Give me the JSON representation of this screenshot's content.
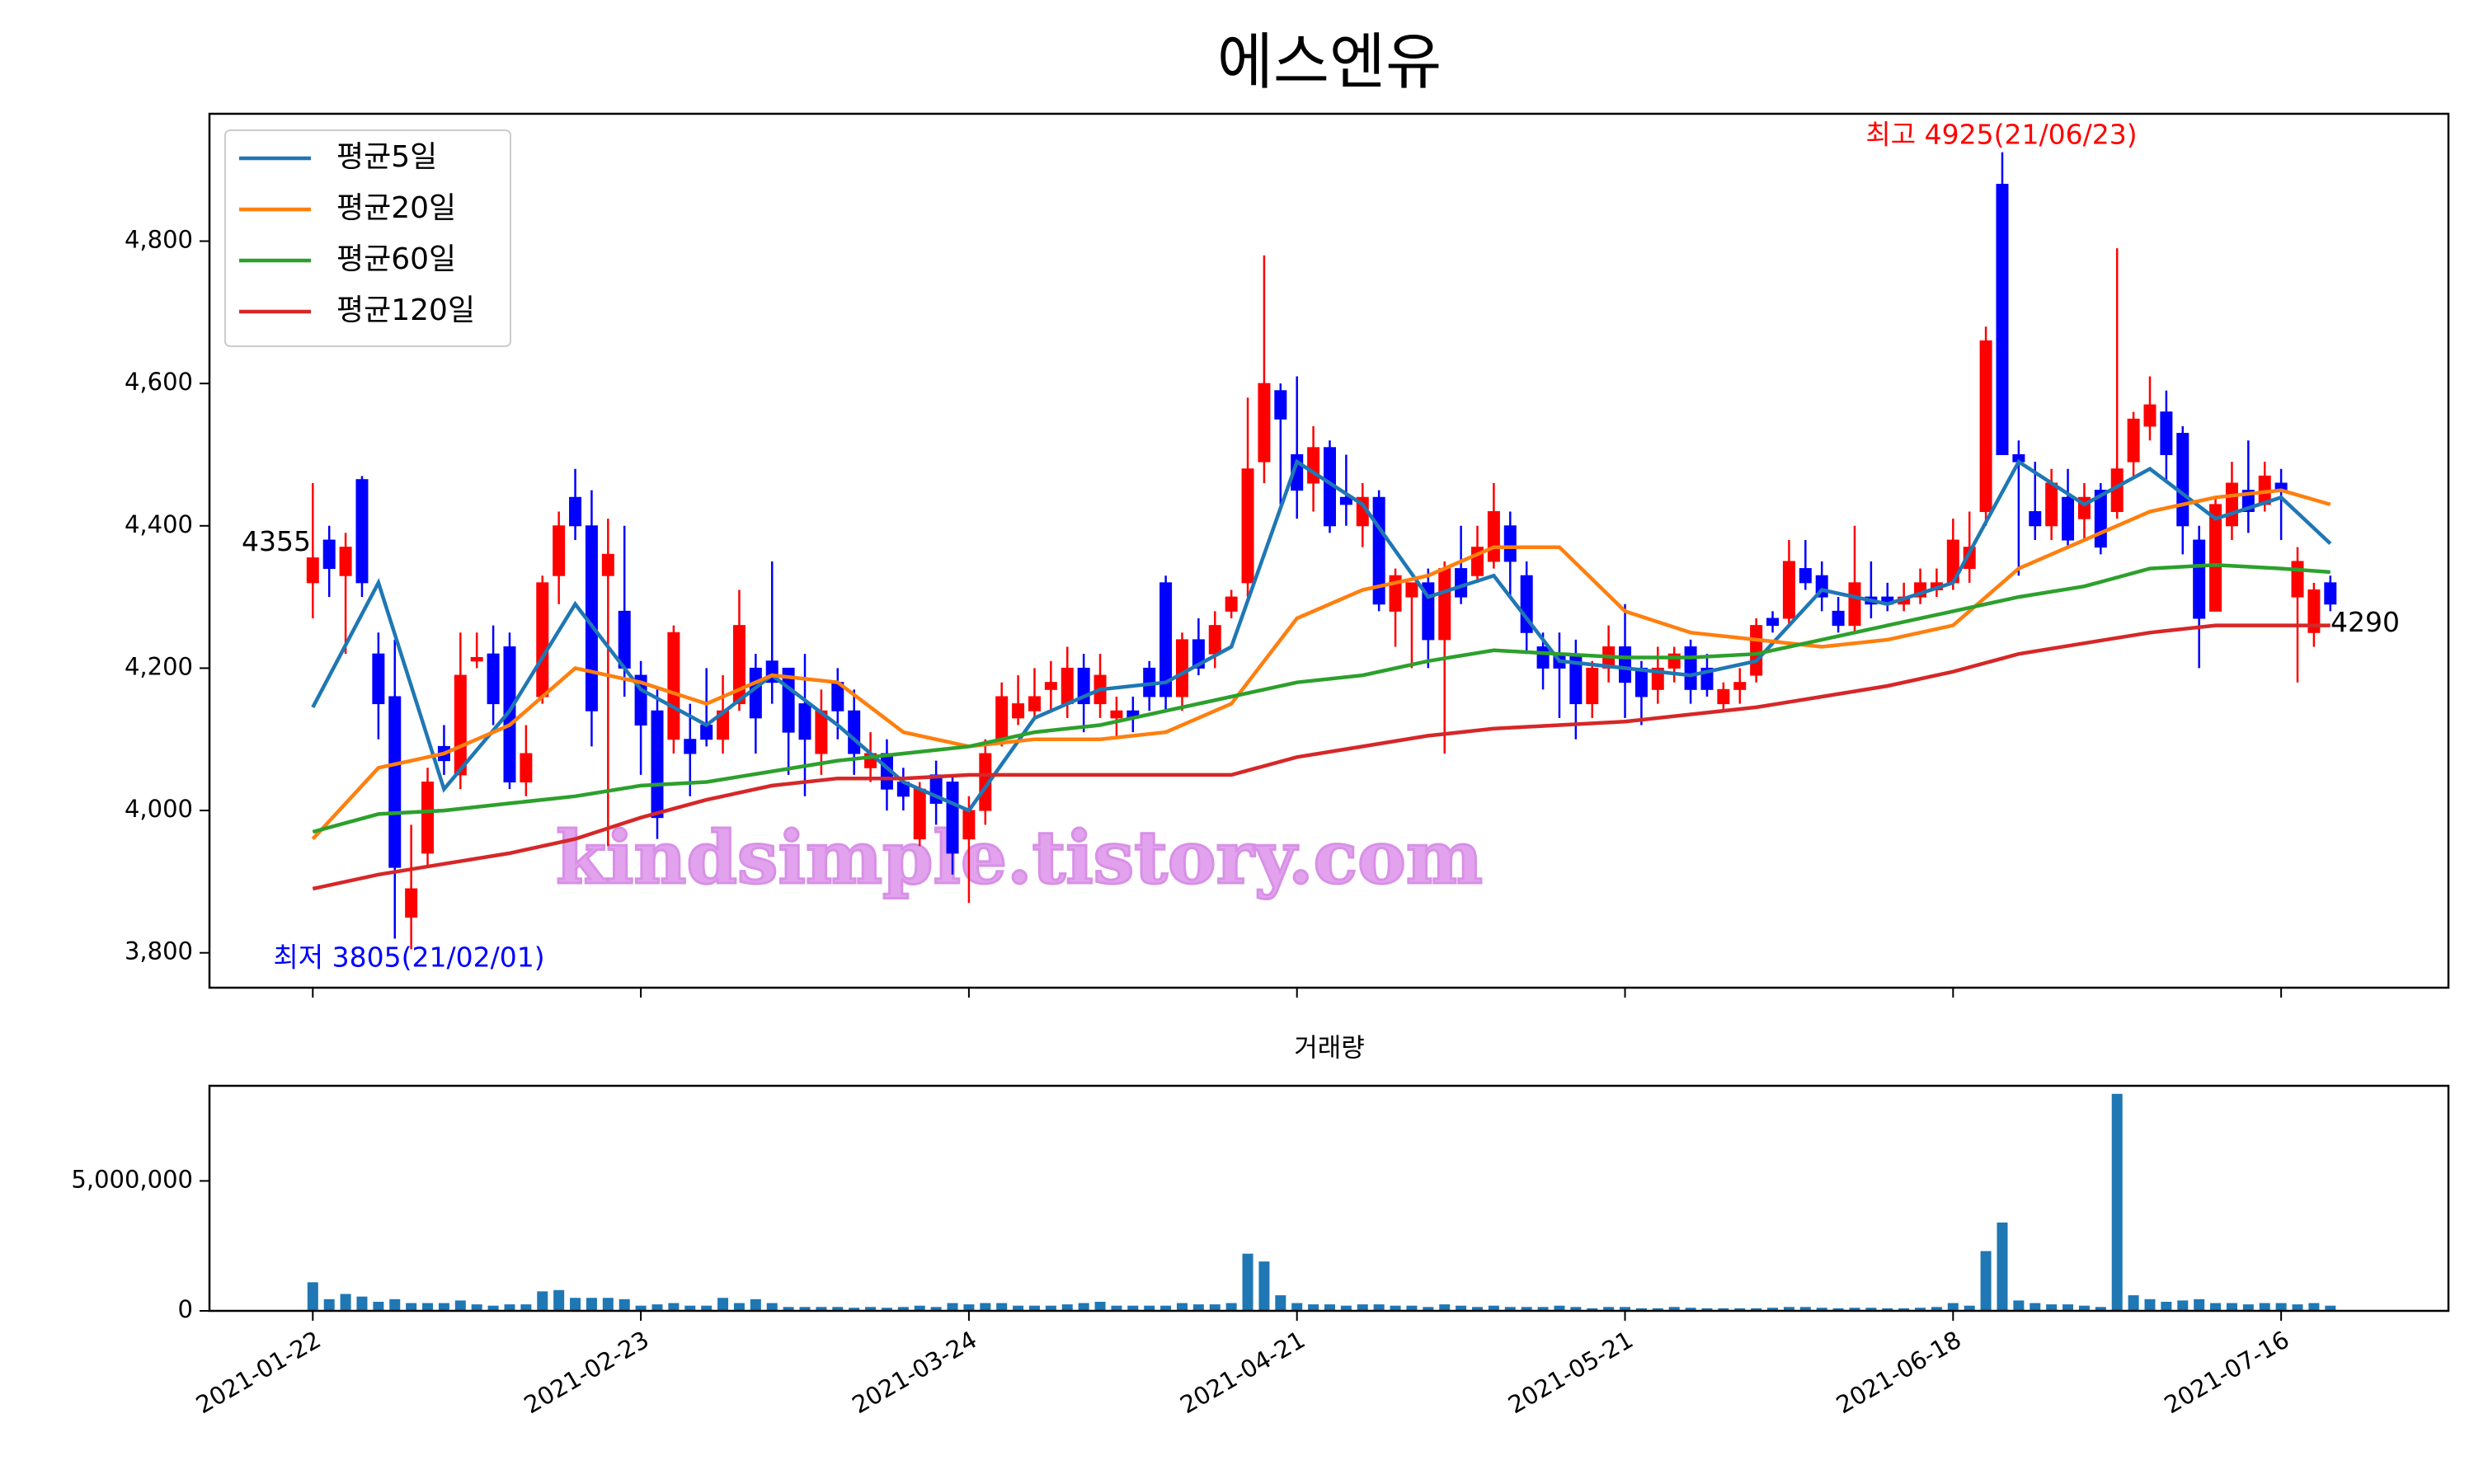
{
  "chart_data": [
    {
      "type": "candlestick",
      "title": "에스엔유",
      "up_color": "#ff0000",
      "down_color": "#0000ff",
      "open": [
        4320,
        4380,
        4330,
        4465,
        4220,
        4160,
        3850,
        3940,
        4090,
        4050,
        4210,
        4220,
        4230,
        4040,
        4160,
        4330,
        4440,
        4400,
        4330,
        4280,
        4190,
        4140,
        4100,
        4100,
        4120,
        4100,
        4150,
        4200,
        4210,
        4200,
        4150,
        4080,
        4180,
        4140,
        4060,
        4080,
        4040,
        3960,
        4050,
        4040,
        3960,
        4000,
        4100,
        4130,
        4140,
        4170,
        4150,
        4200,
        4150,
        4130,
        4140,
        4200,
        4320,
        4160,
        4240,
        4220,
        4280,
        4320,
        4490,
        4590,
        4500,
        4460,
        4510,
        4440,
        4400,
        4440,
        4280,
        4300,
        4320,
        4240,
        4340,
        4330,
        4350,
        4400,
        4330,
        4230,
        4220,
        4220,
        4150,
        4200,
        4230,
        4200,
        4170,
        4200,
        4230,
        4200,
        4150,
        4170,
        4190,
        4270,
        4270,
        4340,
        4330,
        4280,
        4260,
        4300,
        4300,
        4290,
        4300,
        4310,
        4320,
        4340,
        4420,
        4880,
        4500,
        4420,
        4400,
        4440,
        4410,
        4450,
        4420,
        4490,
        4540,
        4560,
        4530,
        4380,
        4280,
        4400,
        4450,
        4430,
        4460,
        4300,
        4250,
        4320
      ],
      "high": [
        4460,
        4400,
        4390,
        4470,
        4250,
        4240,
        3980,
        4060,
        4120,
        4250,
        4250,
        4260,
        4250,
        4120,
        4330,
        4420,
        4480,
        4450,
        4410,
        4400,
        4210,
        4170,
        4260,
        4150,
        4200,
        4190,
        4310,
        4220,
        4350,
        4200,
        4220,
        4170,
        4200,
        4170,
        4110,
        4100,
        4060,
        4040,
        4070,
        4050,
        4020,
        4100,
        4180,
        4190,
        4200,
        4210,
        4230,
        4220,
        4220,
        4160,
        4160,
        4210,
        4330,
        4250,
        4270,
        4280,
        4310,
        4580,
        4780,
        4600,
        4610,
        4540,
        4520,
        4500,
        4460,
        4450,
        4340,
        4320,
        4340,
        4350,
        4400,
        4400,
        4460,
        4420,
        4350,
        4250,
        4250,
        4240,
        4210,
        4260,
        4290,
        4210,
        4230,
        4230,
        4240,
        4220,
        4180,
        4200,
        4270,
        4280,
        4380,
        4380,
        4350,
        4300,
        4400,
        4350,
        4320,
        4320,
        4340,
        4340,
        4410,
        4420,
        4680,
        4925,
        4520,
        4490,
        4480,
        4480,
        4460,
        4460,
        4790,
        4560,
        4610,
        4590,
        4540,
        4400,
        4440,
        4490,
        4520,
        4490,
        4480,
        4370,
        4320,
        4330
      ],
      "low": [
        4270,
        4300,
        4220,
        4300,
        4100,
        3820,
        3805,
        3920,
        4050,
        4030,
        4200,
        4120,
        4030,
        4020,
        4150,
        4290,
        4380,
        4090,
        3950,
        4160,
        4050,
        3960,
        4080,
        4020,
        4090,
        4080,
        4140,
        4080,
        4150,
        4050,
        4020,
        4050,
        4100,
        4050,
        4040,
        4000,
        4000,
        3950,
        3980,
        3910,
        3870,
        3980,
        4090,
        4120,
        4130,
        4140,
        4130,
        4110,
        4130,
        4100,
        4110,
        4140,
        4140,
        4140,
        4190,
        4200,
        4270,
        4300,
        4460,
        4430,
        4410,
        4420,
        4390,
        4400,
        4370,
        4280,
        4230,
        4200,
        4200,
        4080,
        4290,
        4320,
        4340,
        4300,
        4220,
        4170,
        4130,
        4100,
        4130,
        4180,
        4130,
        4120,
        4150,
        4180,
        4150,
        4160,
        4140,
        4150,
        4180,
        4250,
        4260,
        4310,
        4280,
        4250,
        4250,
        4270,
        4280,
        4280,
        4290,
        4300,
        4310,
        4320,
        4400,
        4500,
        4330,
        4380,
        4380,
        4370,
        4380,
        4360,
        4410,
        4470,
        4520,
        4460,
        4360,
        4200,
        4280,
        4380,
        4390,
        4420,
        4380,
        4180,
        4230,
        4280
      ],
      "close": [
        4355,
        4340,
        4370,
        4320,
        4150,
        3920,
        3890,
        4040,
        4070,
        4190,
        4215,
        4150,
        4040,
        4080,
        4320,
        4400,
        4400,
        4140,
        4360,
        4200,
        4120,
        3990,
        4250,
        4080,
        4100,
        4140,
        4260,
        4130,
        4180,
        4110,
        4100,
        4140,
        4140,
        4080,
        4080,
        4030,
        4020,
        4030,
        4010,
        3940,
        4000,
        4080,
        4160,
        4150,
        4160,
        4180,
        4200,
        4150,
        4190,
        4140,
        4130,
        4160,
        4160,
        4240,
        4200,
        4260,
        4300,
        4480,
        4600,
        4550,
        4450,
        4510,
        4400,
        4430,
        4440,
        4290,
        4330,
        4320,
        4240,
        4340,
        4300,
        4370,
        4420,
        4350,
        4250,
        4200,
        4200,
        4150,
        4200,
        4230,
        4180,
        4160,
        4200,
        4220,
        4170,
        4170,
        4170,
        4180,
        4260,
        4260,
        4350,
        4320,
        4300,
        4260,
        4320,
        4290,
        4290,
        4300,
        4320,
        4320,
        4380,
        4370,
        4660,
        4500,
        4490,
        4400,
        4460,
        4380,
        4440,
        4370,
        4480,
        4550,
        4570,
        4500,
        4400,
        4270,
        4430,
        4460,
        4420,
        4470,
        4450,
        4350,
        4310,
        4290
      ],
      "series": [
        {
          "name": "평균5일",
          "color": "#1f77b4",
          "x": [
            0,
            4,
            8,
            12,
            16,
            20,
            24,
            28,
            32,
            36,
            40,
            44,
            48,
            52,
            56,
            60,
            64,
            68,
            72,
            76,
            80,
            84,
            88,
            92,
            96,
            100,
            104,
            108,
            112,
            116,
            120,
            123
          ],
          "values": [
            4145,
            4320,
            4030,
            4140,
            4290,
            4170,
            4120,
            4190,
            4120,
            4040,
            4000,
            4130,
            4170,
            4180,
            4230,
            4490,
            4430,
            4300,
            4330,
            4210,
            4200,
            4190,
            4210,
            4310,
            4290,
            4320,
            4490,
            4430,
            4480,
            4410,
            4440,
            4375
          ]
        },
        {
          "name": "평균20일",
          "color": "#ff7f0e",
          "x": [
            0,
            4,
            8,
            12,
            16,
            20,
            24,
            28,
            32,
            36,
            40,
            44,
            48,
            52,
            56,
            60,
            64,
            68,
            72,
            76,
            80,
            84,
            88,
            92,
            96,
            100,
            104,
            108,
            112,
            116,
            120,
            123
          ],
          "values": [
            3960,
            4060,
            4080,
            4120,
            4200,
            4180,
            4150,
            4190,
            4180,
            4110,
            4090,
            4100,
            4100,
            4110,
            4150,
            4270,
            4310,
            4330,
            4370,
            4370,
            4280,
            4250,
            4240,
            4230,
            4240,
            4260,
            4340,
            4380,
            4420,
            4440,
            4450,
            4430
          ]
        },
        {
          "name": "평균60일",
          "color": "#2ca02c",
          "x": [
            0,
            4,
            8,
            12,
            16,
            20,
            24,
            28,
            32,
            36,
            40,
            44,
            48,
            52,
            56,
            60,
            64,
            68,
            72,
            76,
            80,
            84,
            88,
            92,
            96,
            100,
            104,
            108,
            112,
            116,
            120,
            123
          ],
          "values": [
            3970,
            3995,
            4000,
            4010,
            4020,
            4035,
            4040,
            4055,
            4070,
            4080,
            4090,
            4110,
            4120,
            4140,
            4160,
            4180,
            4190,
            4210,
            4225,
            4220,
            4215,
            4215,
            4220,
            4240,
            4260,
            4280,
            4300,
            4315,
            4340,
            4345,
            4340,
            4335
          ]
        },
        {
          "name": "평균120일",
          "color": "#d62728",
          "x": [
            0,
            4,
            8,
            12,
            16,
            20,
            24,
            28,
            32,
            36,
            40,
            44,
            48,
            52,
            56,
            60,
            64,
            68,
            72,
            76,
            80,
            84,
            88,
            92,
            96,
            100,
            104,
            108,
            112,
            116,
            120,
            123
          ],
          "values": [
            3890,
            3910,
            3925,
            3940,
            3960,
            3990,
            4015,
            4035,
            4045,
            4045,
            4050,
            4050,
            4050,
            4050,
            4050,
            4075,
            4090,
            4105,
            4115,
            4120,
            4125,
            4135,
            4145,
            4160,
            4175,
            4195,
            4220,
            4235,
            4250,
            4260,
            4260,
            4260
          ]
        }
      ],
      "legend": "upper left",
      "annotations": {
        "high": "최고 4925(21/06/23)",
        "high_color": "#ff0000",
        "low": "최저 3805(21/02/01)",
        "low_color": "#0000ff",
        "first": 4355,
        "last": 4290
      },
      "watermark": "kindsimple.tistory.com",
      "xlim": [
        -6.3,
        130.2
      ],
      "ylim": [
        3751,
        4979
      ],
      "yticks": [
        {
          "value": 3800,
          "label": "3,800"
        },
        {
          "value": 4000,
          "label": "4,000"
        },
        {
          "value": 4200,
          "label": "4,200"
        },
        {
          "value": 4400,
          "label": "4,400"
        },
        {
          "value": 4600,
          "label": "4,600"
        },
        {
          "value": 4800,
          "label": "4,800"
        }
      ]
    },
    {
      "type": "bar",
      "title": "거래량",
      "color": "#1f77b4",
      "values": [
        1100000,
        450000,
        650000,
        550000,
        350000,
        450000,
        300000,
        300000,
        300000,
        400000,
        250000,
        200000,
        250000,
        250000,
        750000,
        800000,
        500000,
        500000,
        500000,
        450000,
        200000,
        250000,
        300000,
        200000,
        200000,
        500000,
        300000,
        450000,
        300000,
        150000,
        150000,
        150000,
        150000,
        120000,
        150000,
        120000,
        150000,
        200000,
        150000,
        300000,
        250000,
        300000,
        300000,
        200000,
        200000,
        200000,
        250000,
        300000,
        350000,
        200000,
        200000,
        200000,
        200000,
        300000,
        250000,
        250000,
        300000,
        2200000,
        1900000,
        600000,
        300000,
        250000,
        250000,
        200000,
        250000,
        250000,
        200000,
        200000,
        150000,
        250000,
        200000,
        150000,
        200000,
        150000,
        150000,
        150000,
        200000,
        150000,
        100000,
        150000,
        150000,
        100000,
        100000,
        150000,
        120000,
        100000,
        100000,
        100000,
        100000,
        120000,
        150000,
        150000,
        120000,
        100000,
        120000,
        120000,
        100000,
        100000,
        120000,
        150000,
        300000,
        200000,
        2300000,
        3400000,
        400000,
        300000,
        250000,
        250000,
        200000,
        150000,
        8350000,
        600000,
        450000,
        350000,
        400000,
        450000,
        300000,
        300000,
        250000,
        300000,
        300000,
        250000,
        300000,
        200000
      ],
      "xlim": [
        -6.3,
        130.2
      ],
      "ylim": [
        0,
        8660000
      ],
      "yticks": [
        0,
        {
          "value": 5000000,
          "label": "5,000,000"
        }
      ],
      "xticks": [
        {
          "value": 0,
          "label": "2021-01-22"
        },
        {
          "value": 20,
          "label": "2021-02-23"
        },
        {
          "value": 40,
          "label": "2021-03-24"
        },
        {
          "value": 60,
          "label": "2021-04-21"
        },
        {
          "value": 80,
          "label": "2021-05-21"
        },
        {
          "value": 100,
          "label": "2021-06-18"
        },
        {
          "value": 120,
          "label": "2021-07-16"
        }
      ]
    }
  ]
}
